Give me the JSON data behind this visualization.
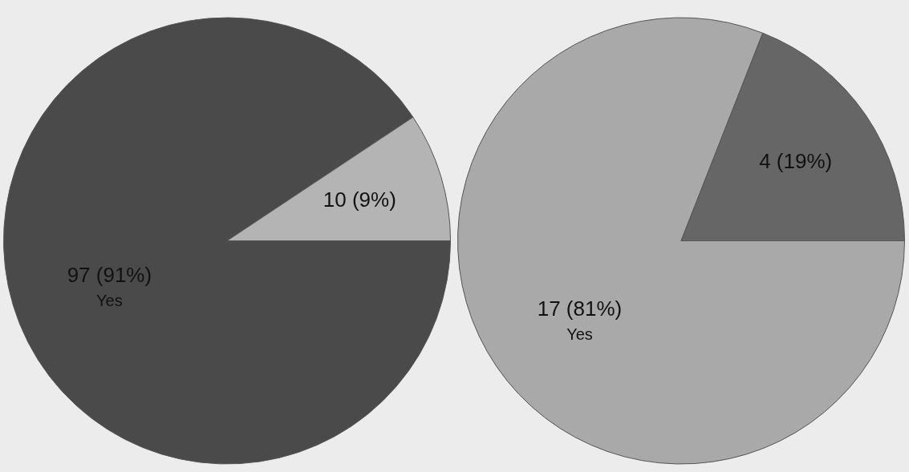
{
  "chart_data": [
    {
      "type": "pie",
      "categories": [
        "Yes",
        null
      ],
      "values": [
        97,
        10
      ],
      "colors": [
        "#4a4a4a",
        "#b4b4b4"
      ],
      "value_labels": [
        "97 (91%)",
        "10 (9%)"
      ],
      "legend": false
    },
    {
      "type": "pie",
      "categories": [
        "Yes",
        null
      ],
      "values": [
        17,
        4
      ],
      "colors": [
        "#a9a9a9",
        "#666666"
      ],
      "value_labels": [
        "17 (81%)",
        "4 (19%)"
      ],
      "legend": false
    }
  ]
}
